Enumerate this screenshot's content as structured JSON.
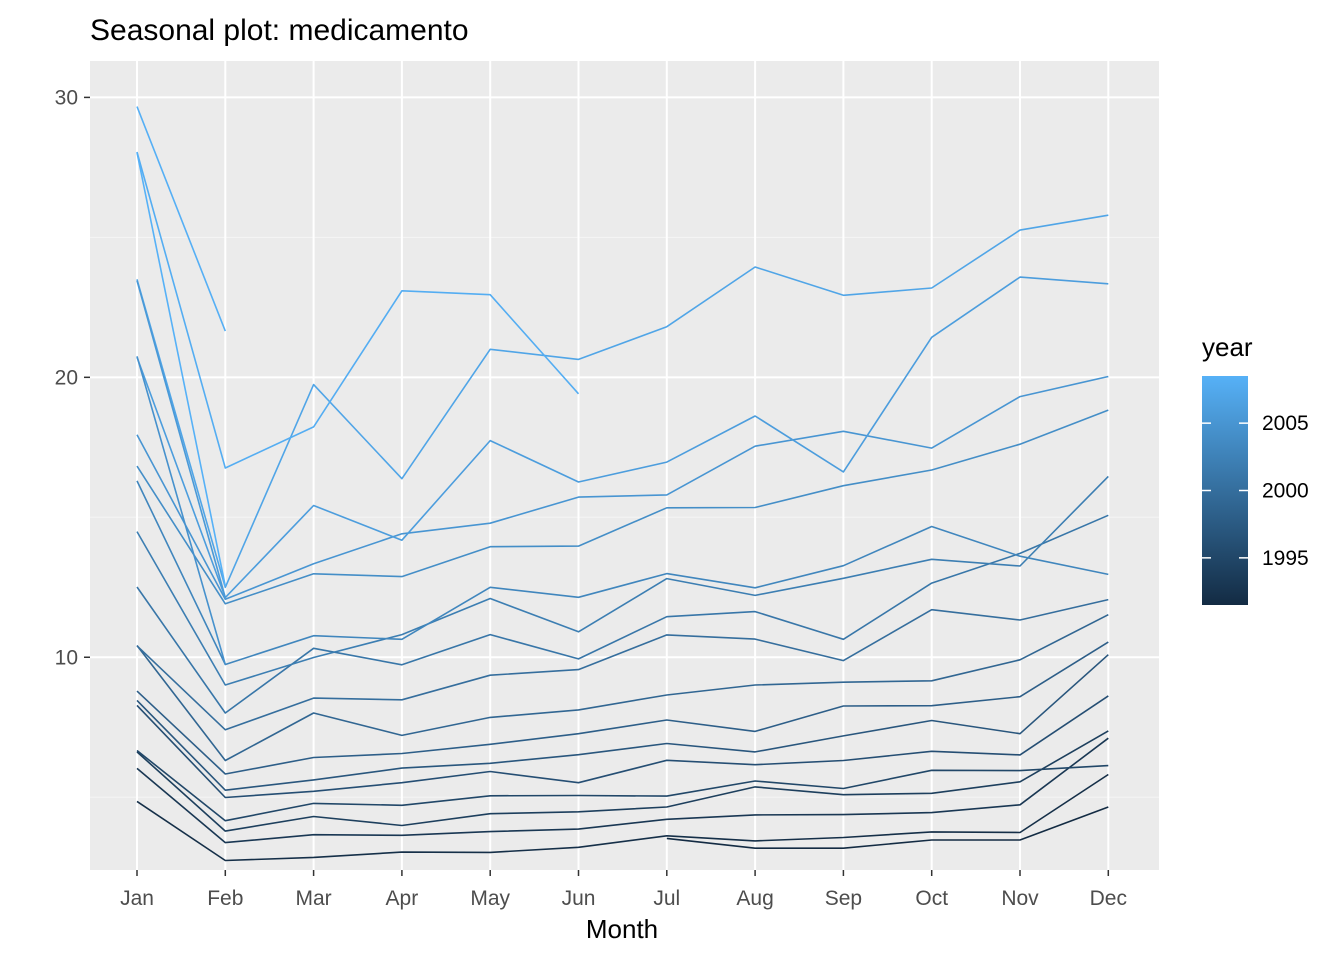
{
  "chart_data": {
    "type": "line",
    "title": "Seasonal plot: medicamento",
    "xlabel": "Month",
    "ylabel": "",
    "categories": [
      "Jan",
      "Feb",
      "Mar",
      "Apr",
      "May",
      "Jun",
      "Jul",
      "Aug",
      "Sep",
      "Oct",
      "Nov",
      "Dec"
    ],
    "ylim": [
      2.4,
      31.3
    ],
    "yticks": [
      10,
      20,
      30
    ],
    "grid": true,
    "legend": {
      "title": "year",
      "placement": "right",
      "range": [
        1991.5,
        2008.5
      ],
      "ticks": [
        1995,
        2000,
        2005
      ],
      "color_low": "#132B43",
      "color_high": "#56B1F7"
    },
    "series": [
      {
        "year": 1991.5,
        "values": [
          null,
          null,
          null,
          null,
          null,
          null,
          3.53,
          3.18,
          3.18,
          3.47,
          3.47,
          4.65
        ]
      },
      {
        "year": 1992,
        "values": [
          4.85,
          2.74,
          2.85,
          3.04,
          3.03,
          3.21,
          3.62,
          3.44,
          3.56,
          3.76,
          3.74,
          5.81
        ]
      },
      {
        "year": 1993,
        "values": [
          6.03,
          3.38,
          3.66,
          3.64,
          3.77,
          3.86,
          4.21,
          4.37,
          4.38,
          4.45,
          4.73,
          7.11
        ]
      },
      {
        "year": 1994,
        "values": [
          6.62,
          3.79,
          4.31,
          3.99,
          4.41,
          4.48,
          4.65,
          5.37,
          5.09,
          5.14,
          5.55,
          7.37
        ]
      },
      {
        "year": 1995,
        "values": [
          6.67,
          4.16,
          4.78,
          4.71,
          5.05,
          5.06,
          5.04,
          5.58,
          5.31,
          5.96,
          5.95,
          6.13
        ]
      },
      {
        "year": 1996,
        "values": [
          8.28,
          4.99,
          5.21,
          5.52,
          5.92,
          5.52,
          6.32,
          6.16,
          6.31,
          6.64,
          6.51,
          8.62
        ]
      },
      {
        "year": 1997,
        "values": [
          8.46,
          5.25,
          5.62,
          6.04,
          6.21,
          6.52,
          6.92,
          6.62,
          7.19,
          7.74,
          7.27,
          10.09
        ]
      },
      {
        "year": 1998,
        "values": [
          8.79,
          5.83,
          6.42,
          6.56,
          6.89,
          7.27,
          7.76,
          7.35,
          8.26,
          8.27,
          8.59,
          10.54
        ]
      },
      {
        "year": 1999,
        "values": [
          10.42,
          6.31,
          8.01,
          7.21,
          7.85,
          8.12,
          8.65,
          9.01,
          9.11,
          9.16,
          9.91,
          11.52
        ]
      },
      {
        "year": 2000,
        "values": [
          10.41,
          7.41,
          8.54,
          8.48,
          9.36,
          9.56,
          10.8,
          10.65,
          9.88,
          11.7,
          11.33,
          12.06
        ]
      },
      {
        "year": 2001,
        "values": [
          12.51,
          8.01,
          10.32,
          9.73,
          10.81,
          9.94,
          11.45,
          11.63,
          10.64,
          12.65,
          13.71,
          15.07
        ]
      },
      {
        "year": 2002,
        "values": [
          14.49,
          9.01,
          9.99,
          10.81,
          12.1,
          10.91,
          12.81,
          12.21,
          12.82,
          13.5,
          13.26,
          16.46
        ]
      },
      {
        "year": 2003,
        "values": [
          16.3,
          9.74,
          10.77,
          10.64,
          12.5,
          12.14,
          12.99,
          12.48,
          13.27,
          14.67,
          13.61,
          12.96
        ]
      },
      {
        "year": 2004,
        "values": [
          16.83,
          11.91,
          12.98,
          12.88,
          13.95,
          13.97,
          15.34,
          15.35,
          16.13,
          16.69,
          17.61,
          18.83
        ]
      },
      {
        "year": 2005,
        "values": [
          17.95,
          12.07,
          13.34,
          14.41,
          14.79,
          15.72,
          15.8,
          17.54,
          18.07,
          17.47,
          19.31,
          20.03
        ]
      },
      {
        "year": 2006,
        "values": [
          20.72,
          12.13,
          15.42,
          14.18,
          17.74,
          16.26,
          16.97,
          18.62,
          16.62,
          21.43,
          23.58,
          23.34
        ]
      },
      {
        "year": 2007,
        "values": [
          23.5,
          12.5,
          19.74,
          16.38,
          21.0,
          20.64,
          21.81,
          23.94,
          22.93,
          23.19,
          25.26,
          25.79
        ]
      },
      {
        "year": 2008,
        "values": [
          28.05,
          16.76,
          18.23,
          23.09,
          22.95,
          19.41,
          null,
          null,
          null,
          null,
          null,
          null
        ]
      },
      {
        "year": 2008.3,
        "values": [
          29.67,
          21.65,
          null,
          null,
          null,
          null,
          null,
          null,
          null,
          null,
          null,
          null
        ]
      },
      {
        "year": 2008.5,
        "values": [
          28.03,
          12.54,
          null,
          null,
          null,
          null,
          null,
          null,
          null,
          null,
          null,
          null
        ]
      },
      {
        "year": 2005.5,
        "values": [
          23.45,
          12.13,
          null,
          null,
          null,
          null,
          null,
          null,
          null,
          null,
          null,
          null
        ]
      },
      {
        "year": 2004.5,
        "values": [
          20.75,
          9.74,
          null,
          null,
          null,
          null,
          null,
          null,
          null,
          null,
          null,
          null
        ]
      }
    ]
  }
}
